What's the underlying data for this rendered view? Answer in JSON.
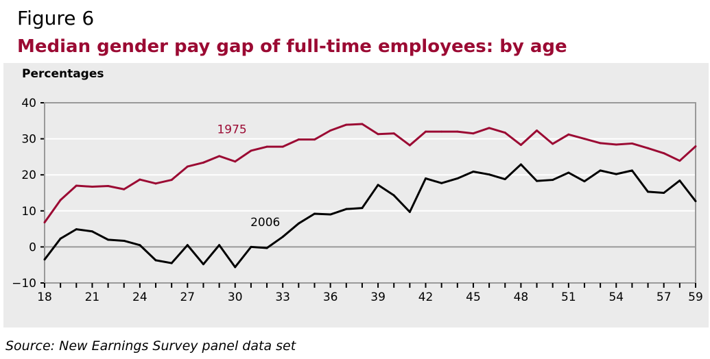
{
  "figure_label": "Figure 6",
  "source": "Source: New Earnings Survey panel data set",
  "chart_data": {
    "type": "line",
    "title": "Median gender pay gap of full-time employees: by age",
    "xlabel": "",
    "ylabel": "Percentages",
    "xlim": [
      18,
      59
    ],
    "ylim": [
      -10,
      40
    ],
    "xticks": [
      18,
      21,
      24,
      27,
      30,
      33,
      36,
      39,
      42,
      45,
      48,
      51,
      54,
      57,
      59
    ],
    "yticks": [
      -10,
      0,
      10,
      20,
      30,
      40
    ],
    "ytick_labels": [
      "−10",
      "0",
      "10",
      "20",
      "30",
      "40"
    ],
    "grid": true,
    "x": [
      18,
      19,
      20,
      21,
      22,
      23,
      24,
      25,
      26,
      27,
      28,
      29,
      30,
      31,
      32,
      33,
      34,
      35,
      36,
      37,
      38,
      39,
      40,
      41,
      42,
      43,
      44,
      45,
      46,
      47,
      48,
      49,
      50,
      51,
      52,
      53,
      54,
      55,
      56,
      57,
      58,
      59
    ],
    "series": [
      {
        "name": "1975",
        "color": "#9b0a33",
        "values": [
          6.8,
          13,
          17,
          16.7,
          16.9,
          16,
          18.7,
          17.6,
          18.6,
          22.3,
          23.4,
          25.2,
          23.7,
          26.7,
          27.8,
          27.8,
          29.8,
          29.8,
          32.3,
          33.9,
          34.1,
          31.3,
          31.5,
          28.2,
          32,
          32,
          32,
          31.5,
          33,
          31.7,
          28.3,
          32.3,
          28.6,
          31.2,
          30,
          28.8,
          28.4,
          28.7,
          27.4,
          26,
          23.9,
          27.9
        ]
      },
      {
        "name": "2006",
        "color": "#000000",
        "values": [
          -3.5,
          2.3,
          4.9,
          4.3,
          2,
          1.7,
          0.5,
          -3.7,
          -4.5,
          0.5,
          -4.8,
          0.5,
          -5.6,
          0,
          -0.3,
          2.8,
          6.5,
          9.2,
          9.0,
          10.5,
          10.8,
          17.2,
          14.3,
          9.7,
          19,
          17.7,
          19,
          20.9,
          20.1,
          18.8,
          22.9,
          18.3,
          18.6,
          20.6,
          18.2,
          21.2,
          20.2,
          21.2,
          15.3,
          15,
          18.4,
          12.7
        ]
      }
    ]
  }
}
